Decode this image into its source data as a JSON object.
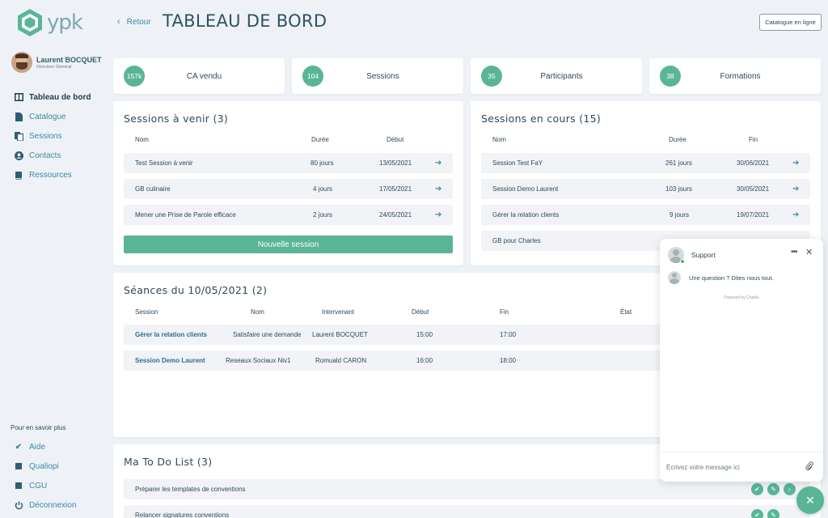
{
  "logo": {
    "text": "ypk",
    "color": "#5ab597"
  },
  "user": {
    "name": "Laurent BOCQUET",
    "role": "Directeur Général"
  },
  "nav": [
    {
      "label": "Tableau de bord",
      "icon": "dashboard-icon"
    },
    {
      "label": "Catalogue",
      "icon": "document-icon"
    },
    {
      "label": "Sessions",
      "icon": "files-icon"
    },
    {
      "label": "Contacts",
      "icon": "user-icon"
    },
    {
      "label": "Ressources",
      "icon": "book-icon"
    }
  ],
  "more": {
    "title": "Pour en savoir plus",
    "items": [
      {
        "label": "Aide",
        "icon": "check-icon"
      },
      {
        "label": "Qualiopi",
        "icon": "book-icon"
      },
      {
        "label": "CGU",
        "icon": "book-icon"
      },
      {
        "label": "Déconnexion",
        "icon": "power-icon"
      }
    ]
  },
  "header": {
    "back": "Retour",
    "title": "TABLEAU DE BORD",
    "catalogue_button": "Catalogue en ligne"
  },
  "stats": [
    {
      "value": "157k",
      "label": "CA vendu"
    },
    {
      "value": "104",
      "label": "Sessions"
    },
    {
      "value": "35",
      "label": "Participants"
    },
    {
      "value": "38",
      "label": "Formations"
    }
  ],
  "upcoming": {
    "title": "Sessions à venir (3)",
    "headers": {
      "name": "Nom",
      "duration": "Durée",
      "start": "Début"
    },
    "rows": [
      {
        "name": "Test Session à venir",
        "duration": "80 jours",
        "date": "13/05/2021"
      },
      {
        "name": "GB culinaire",
        "duration": "4 jours",
        "date": "17/05/2021"
      },
      {
        "name": "Mener une Prise de Parole efficace",
        "duration": "2 jours",
        "date": "24/05/2021"
      }
    ],
    "button": "Nouvelle session"
  },
  "current": {
    "title": "Sessions en cours (15)",
    "headers": {
      "name": "Nom",
      "duration": "Durée",
      "end": "Fin"
    },
    "rows": [
      {
        "name": "Session Test FaY",
        "duration": "261 jours",
        "date": "30/06/2021"
      },
      {
        "name": "Session Demo Laurent",
        "duration": "103 jours",
        "date": "30/05/2021"
      },
      {
        "name": "Gérer la relation clients",
        "duration": "9 jours",
        "date": "19/07/2021"
      },
      {
        "name": "GB pour Charles",
        "duration": "",
        "date": ""
      }
    ]
  },
  "seances": {
    "title": "Séances du 10/05/2021 (2)",
    "headers": {
      "session": "Session",
      "name": "Nom",
      "trainer": "Intervenant",
      "start": "Début",
      "end": "Fin",
      "state": "État"
    },
    "rows": [
      {
        "session": "Gérer la relation clients",
        "name": "Satisfaire une demande",
        "trainer": "Laurent BOCQUET",
        "start": "15:00",
        "end": "17:00"
      },
      {
        "session": "Session Demo Laurent",
        "name": "Reseaux Sociaux Niv1",
        "trainer": "Romuald CARON",
        "start": "16:00",
        "end": "18:00"
      }
    ]
  },
  "todo": {
    "title": "Ma To Do List (3)",
    "items": [
      {
        "label": "Préparer les templates de conventions"
      },
      {
        "label": "Relancer signatures conventions"
      }
    ]
  },
  "chat": {
    "agent": "Support",
    "message": "Une question ? Dites nous tout.",
    "powered": "Powered by Chatlio",
    "placeholder": "Écrivez votre message ici"
  },
  "colors": {
    "accent": "#5ab597",
    "link": "#3d88a3",
    "text": "#2d4a5a",
    "background": "#eef2f6"
  }
}
